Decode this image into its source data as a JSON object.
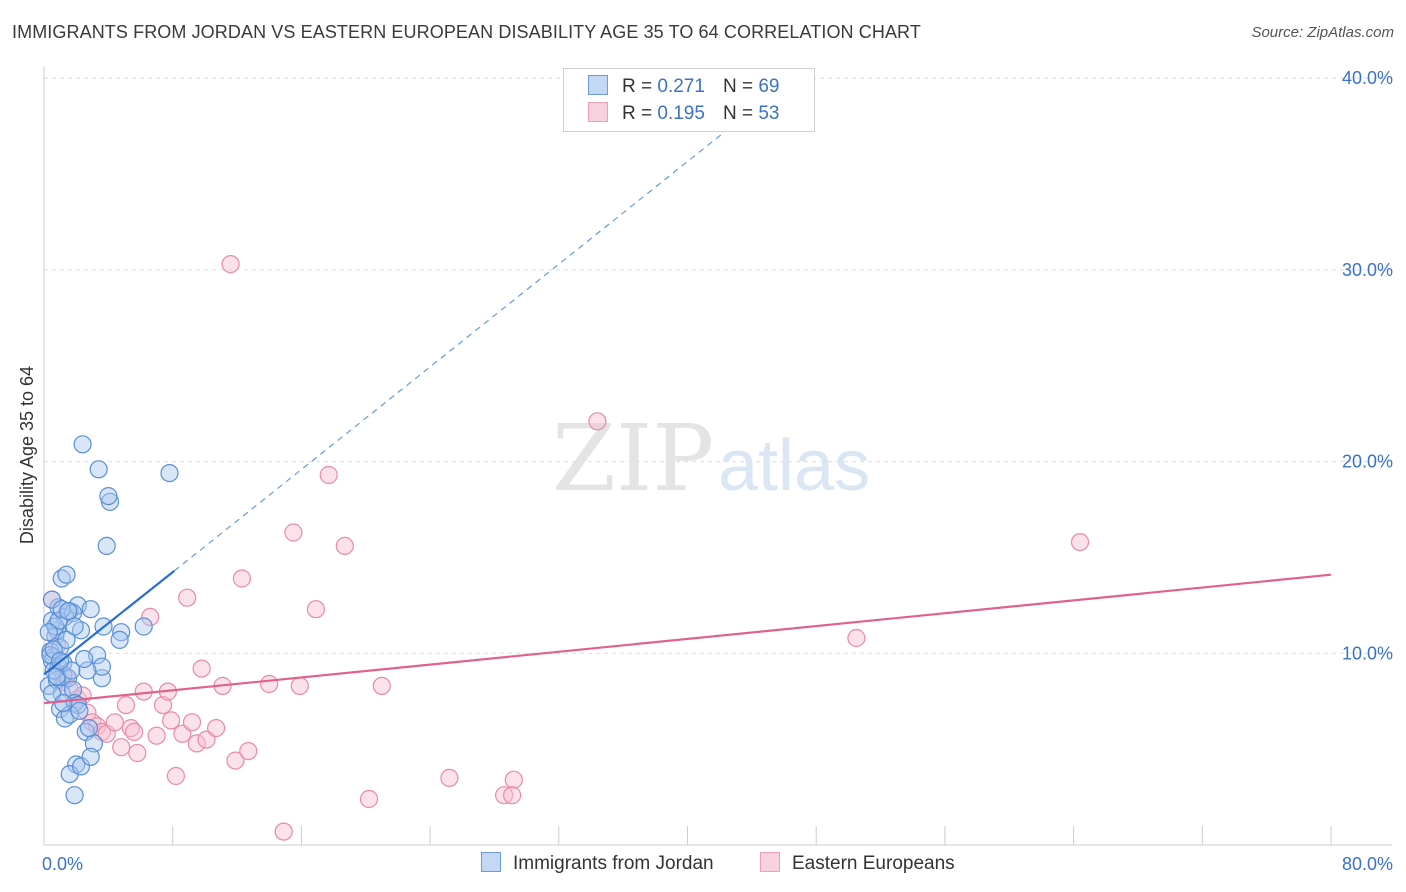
{
  "title": "IMMIGRANTS FROM JORDAN VS EASTERN EUROPEAN DISABILITY AGE 35 TO 64 CORRELATION CHART",
  "source": "Source: ZipAtlas.com",
  "watermark": {
    "zip": "ZIP",
    "atlas": "atlas"
  },
  "legend": {
    "r_label": "R =",
    "n_label": "N =",
    "series": [
      {
        "r": "0.271",
        "n": "69"
      },
      {
        "r": "0.195",
        "n": "53"
      }
    ]
  },
  "bottom_legend": [
    "Immigrants from Jordan",
    "Eastern Europeans"
  ],
  "colors": {
    "blue_fill": "#a9c8f0",
    "blue_stroke": "#5a8fd6",
    "blue_line": "#2a6fd0",
    "pink_fill": "#f6bfd0",
    "pink_stroke": "#e98aa8",
    "pink_line": "#e0628c",
    "tick_label": "#3b72c8",
    "grid": "#dddddd"
  },
  "chart_data": {
    "type": "scatter",
    "title": "IMMIGRANTS FROM JORDAN VS EASTERN EUROPEAN DISABILITY AGE 35 TO 64 CORRELATION CHART",
    "xlabel": "",
    "ylabel": "Disability Age 35 to 64",
    "xlim": [
      0,
      80
    ],
    "ylim": [
      0,
      40
    ],
    "x_tick_labels": [
      "0.0%",
      "80.0%"
    ],
    "y_ticks": [
      10,
      20,
      30,
      40
    ],
    "y_tick_labels": [
      "10.0%",
      "20.0%",
      "30.0%",
      "40.0%"
    ],
    "series": [
      {
        "name": "Immigrants from Jordan",
        "r": 0.271,
        "n": 69,
        "trend": {
          "x0": 0,
          "y0": 8.9,
          "x1": 8.1,
          "y1": 14.3,
          "dash_to_x": 45,
          "dash_to_y": 39.0
        },
        "points": [
          [
            0.4,
            10.1
          ],
          [
            0.6,
            9.8
          ],
          [
            0.8,
            11.2
          ],
          [
            0.5,
            11.7
          ],
          [
            0.9,
            12.4
          ],
          [
            1.1,
            13.9
          ],
          [
            1.4,
            14.1
          ],
          [
            1.6,
            12.2
          ],
          [
            1.3,
            11.9
          ],
          [
            0.7,
            10.9
          ],
          [
            0.5,
            9.6
          ],
          [
            0.9,
            9.3
          ],
          [
            1.2,
            8.9
          ],
          [
            1.5,
            8.7
          ],
          [
            0.3,
            8.3
          ],
          [
            0.8,
            8.6
          ],
          [
            1.1,
            7.9
          ],
          [
            1.8,
            8.1
          ],
          [
            1.9,
            7.4
          ],
          [
            2.1,
            7.3
          ],
          [
            1.0,
            7.1
          ],
          [
            1.3,
            6.6
          ],
          [
            2.6,
            5.9
          ],
          [
            3.1,
            5.3
          ],
          [
            2.0,
            4.2
          ],
          [
            1.6,
            3.7
          ],
          [
            1.9,
            2.6
          ],
          [
            2.3,
            4.1
          ],
          [
            2.9,
            4.6
          ],
          [
            3.6,
            8.7
          ],
          [
            3.3,
            9.9
          ],
          [
            3.6,
            9.3
          ],
          [
            2.7,
            9.1
          ],
          [
            2.3,
            11.2
          ],
          [
            2.1,
            12.5
          ],
          [
            1.8,
            12.1
          ],
          [
            2.9,
            12.3
          ],
          [
            3.7,
            11.4
          ],
          [
            4.8,
            11.1
          ],
          [
            4.7,
            10.7
          ],
          [
            3.9,
            15.6
          ],
          [
            4.1,
            17.9
          ],
          [
            4.0,
            18.2
          ],
          [
            3.4,
            19.6
          ],
          [
            2.4,
            20.9
          ],
          [
            7.8,
            19.4
          ],
          [
            6.2,
            11.4
          ],
          [
            0.5,
            12.8
          ],
          [
            0.7,
            11.4
          ],
          [
            1.0,
            10.3
          ],
          [
            0.4,
            9.9
          ],
          [
            0.6,
            9.1
          ],
          [
            0.8,
            8.8
          ],
          [
            1.2,
            9.5
          ],
          [
            1.4,
            10.7
          ],
          [
            1.7,
            9.1
          ],
          [
            0.5,
            7.9
          ],
          [
            1.6,
            6.8
          ],
          [
            2.2,
            7.0
          ],
          [
            2.8,
            6.1
          ],
          [
            0.9,
            11.7
          ],
          [
            1.1,
            12.3
          ],
          [
            1.5,
            12.2
          ],
          [
            0.3,
            11.1
          ],
          [
            2.5,
            9.7
          ],
          [
            1.9,
            11.4
          ],
          [
            1.2,
            7.4
          ],
          [
            0.6,
            10.2
          ],
          [
            1.0,
            9.6
          ]
        ]
      },
      {
        "name": "Eastern Europeans",
        "r": 0.195,
        "n": 53,
        "trend": {
          "x0": 0,
          "y0": 7.4,
          "x1": 80,
          "y1": 14.1
        },
        "points": [
          [
            0.5,
            12.8
          ],
          [
            0.8,
            10.4
          ],
          [
            1.2,
            8.5
          ],
          [
            1.6,
            8.1
          ],
          [
            2.1,
            7.6
          ],
          [
            2.4,
            7.8
          ],
          [
            2.7,
            6.9
          ],
          [
            3.0,
            6.4
          ],
          [
            3.3,
            6.2
          ],
          [
            3.6,
            5.9
          ],
          [
            3.9,
            5.8
          ],
          [
            4.4,
            6.4
          ],
          [
            4.8,
            5.1
          ],
          [
            5.1,
            7.3
          ],
          [
            5.4,
            6.1
          ],
          [
            5.6,
            5.9
          ],
          [
            5.8,
            4.8
          ],
          [
            6.2,
            8.0
          ],
          [
            6.6,
            11.9
          ],
          [
            7.0,
            5.7
          ],
          [
            7.4,
            7.3
          ],
          [
            7.7,
            8.0
          ],
          [
            7.9,
            6.5
          ],
          [
            8.2,
            3.6
          ],
          [
            8.6,
            5.8
          ],
          [
            8.9,
            12.9
          ],
          [
            9.2,
            6.4
          ],
          [
            9.5,
            5.3
          ],
          [
            9.8,
            9.2
          ],
          [
            10.1,
            5.5
          ],
          [
            10.7,
            6.1
          ],
          [
            11.1,
            8.3
          ],
          [
            11.6,
            30.3
          ],
          [
            11.9,
            4.4
          ],
          [
            12.3,
            13.9
          ],
          [
            12.7,
            4.9
          ],
          [
            14.0,
            8.4
          ],
          [
            14.9,
            0.7
          ],
          [
            15.5,
            16.3
          ],
          [
            15.9,
            8.3
          ],
          [
            16.9,
            12.3
          ],
          [
            17.7,
            19.3
          ],
          [
            18.7,
            15.6
          ],
          [
            20.2,
            2.4
          ],
          [
            21.0,
            8.3
          ],
          [
            25.2,
            3.5
          ],
          [
            28.6,
            2.6
          ],
          [
            29.2,
            3.4
          ],
          [
            29.1,
            2.6
          ],
          [
            34.4,
            22.1
          ],
          [
            50.5,
            10.8
          ],
          [
            64.4,
            15.8
          ],
          [
            1.4,
            8.8
          ]
        ]
      }
    ]
  }
}
